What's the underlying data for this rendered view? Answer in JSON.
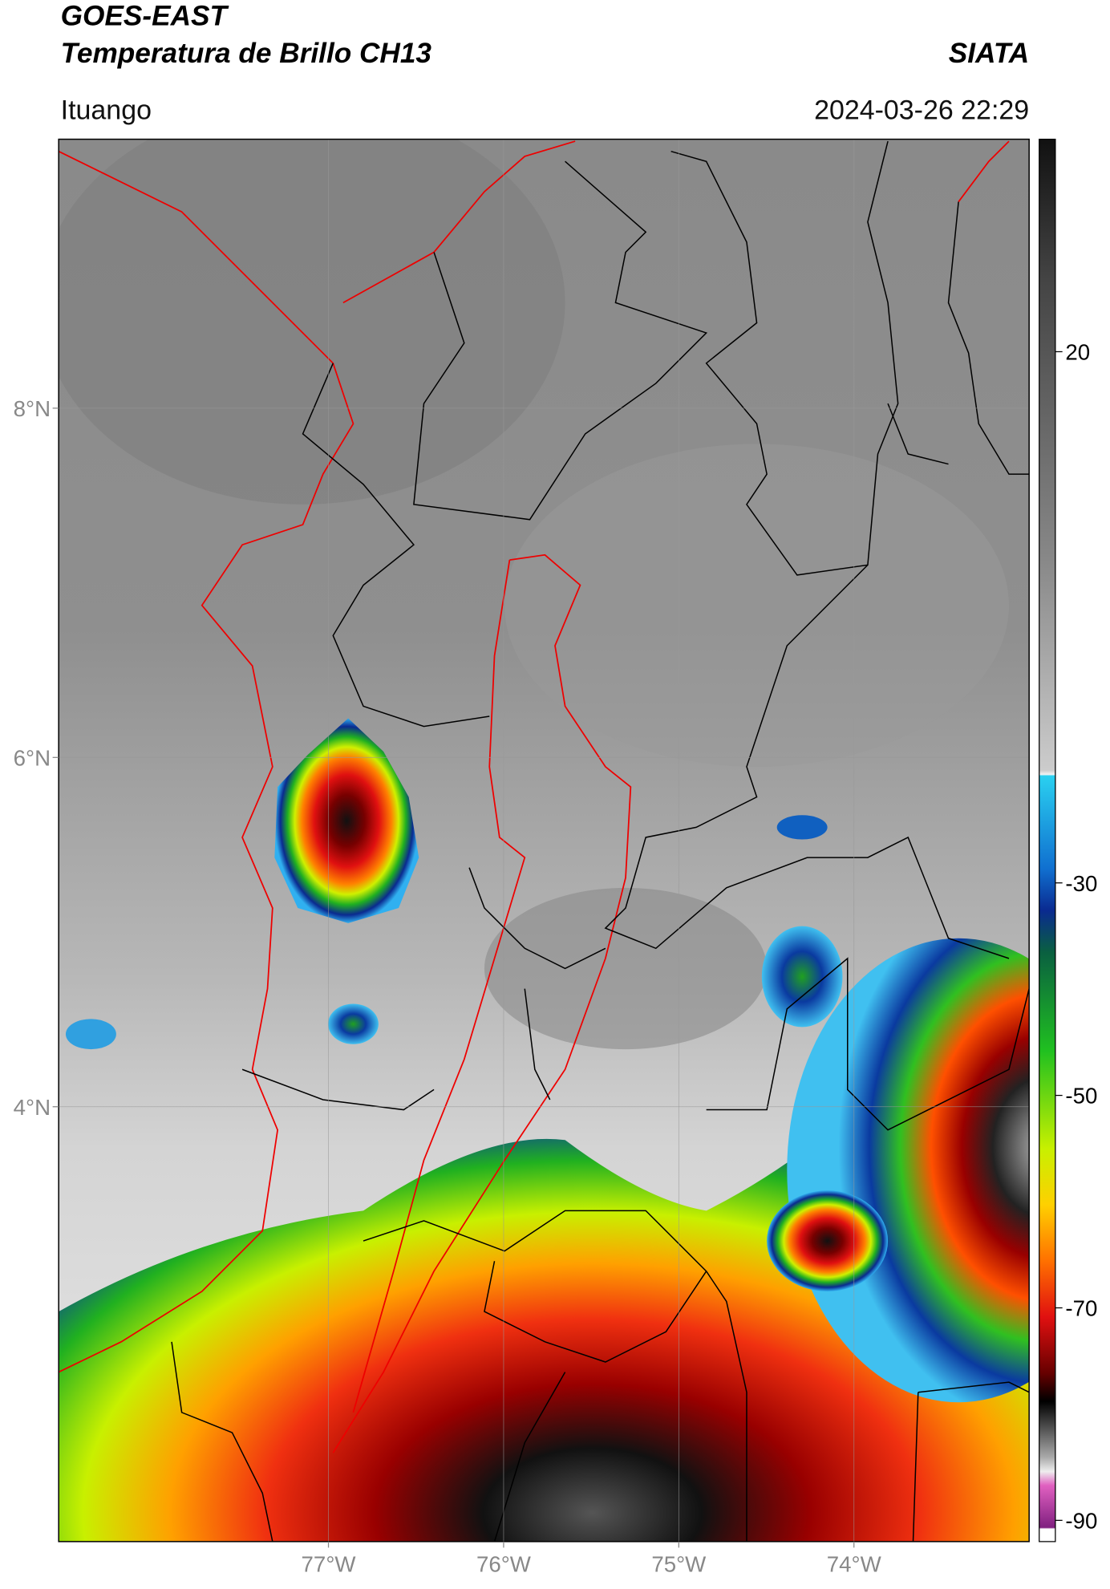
{
  "header": {
    "title": "GOES-EAST",
    "subtitle": "Temperatura de Brillo CH13",
    "source": "SIATA",
    "location": "Ituango",
    "datetime": "2024-03-26 22:29"
  },
  "map": {
    "xlim": [
      -78.54,
      -73.0
    ],
    "ylim": [
      1.51,
      9.54
    ],
    "xticks": [
      {
        "value": -77,
        "label": "77°W"
      },
      {
        "value": -76,
        "label": "76°W"
      },
      {
        "value": -75,
        "label": "75°W"
      },
      {
        "value": -74,
        "label": "74°W"
      }
    ],
    "yticks": [
      {
        "value": 8,
        "label": "8°N"
      },
      {
        "value": 6,
        "label": "6°N"
      },
      {
        "value": 4,
        "label": "4°N"
      }
    ],
    "grid": true
  },
  "colorbar": {
    "lim": [
      -92,
      40
    ],
    "ticks": [
      20,
      -30,
      -50,
      -70,
      -90
    ]
  }
}
